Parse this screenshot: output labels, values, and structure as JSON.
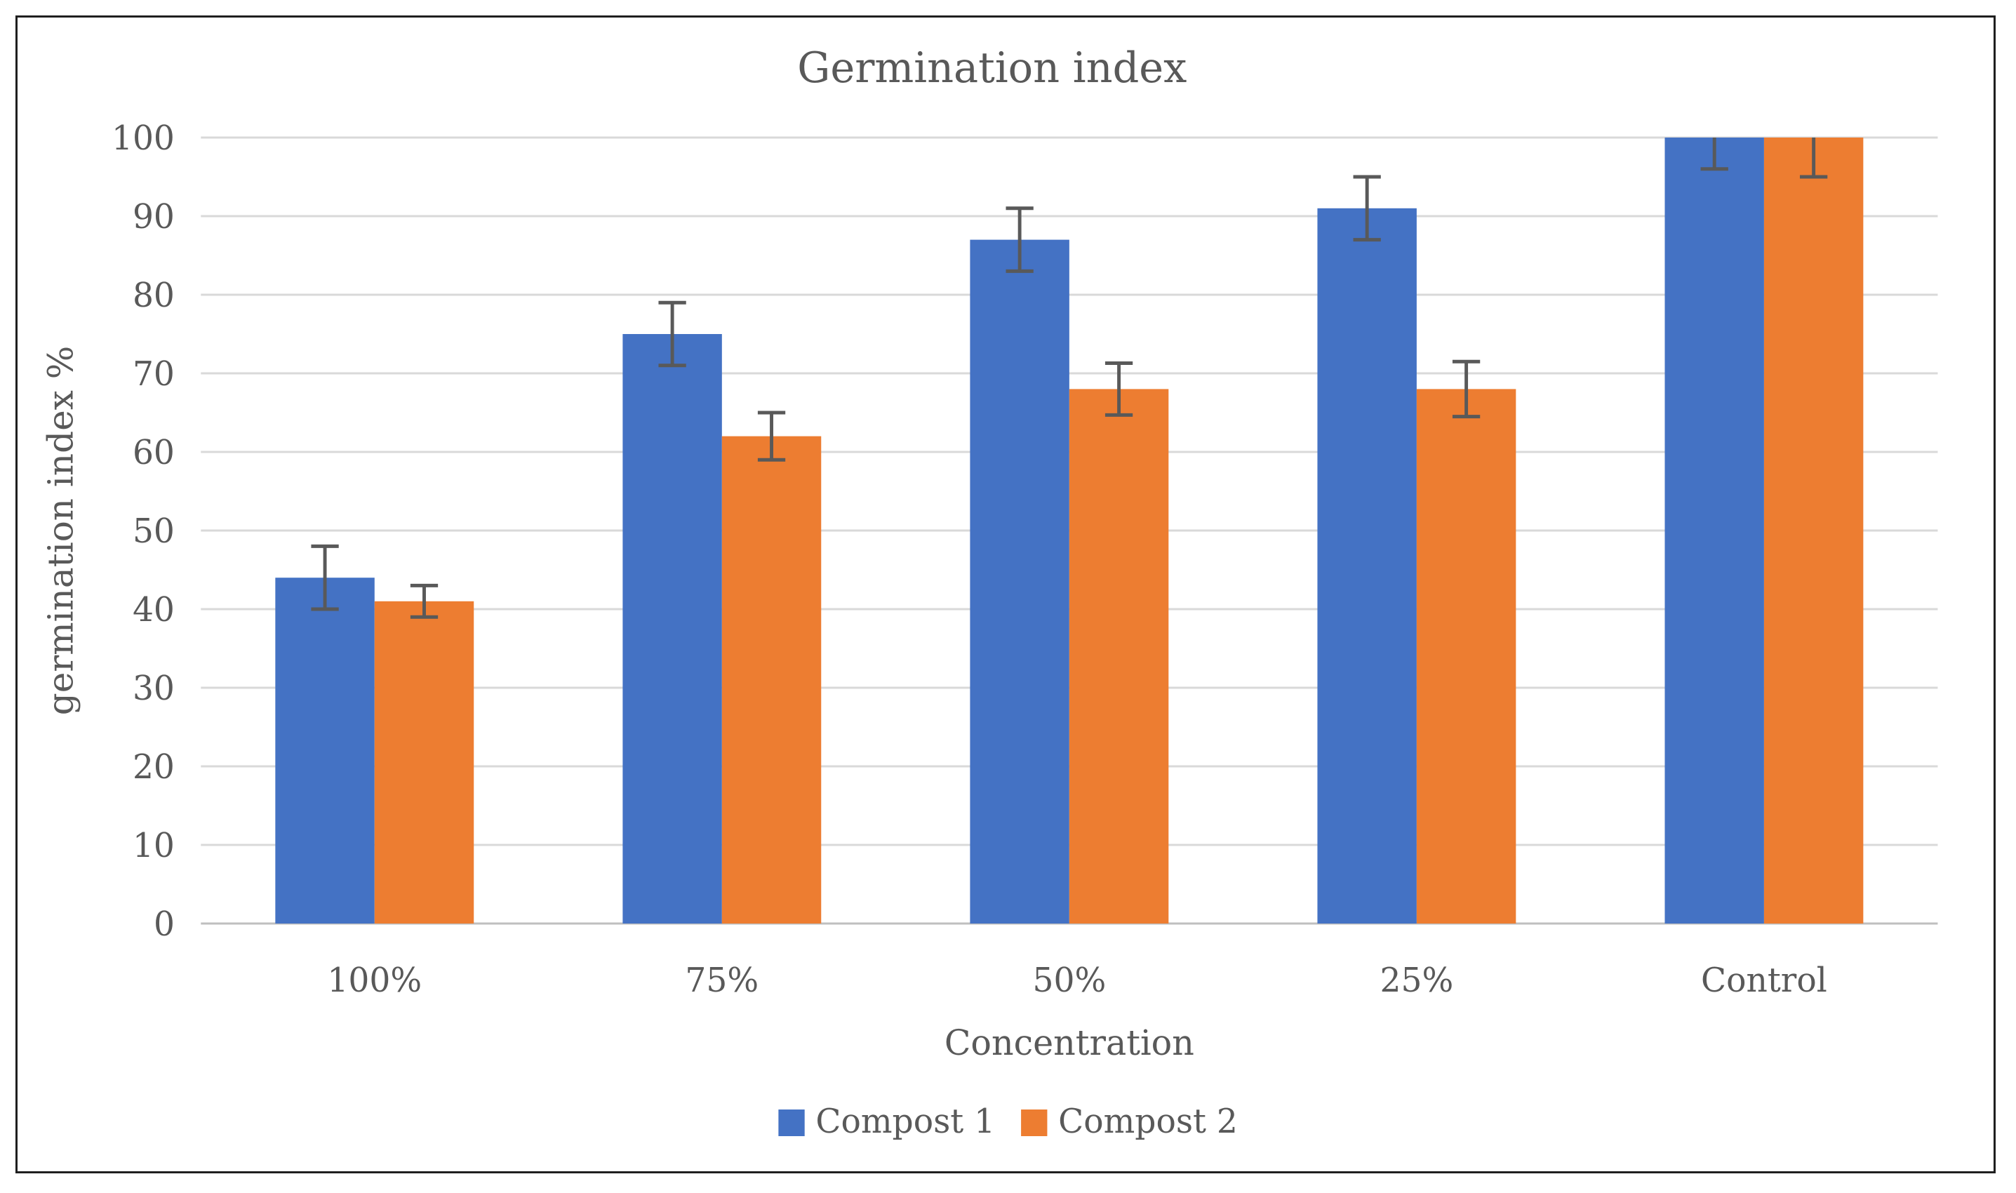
{
  "chart": {
    "background": "#ffffff",
    "frame_border_color": "#1f1f1f"
  },
  "chart_data": {
    "type": "bar",
    "title": "Germination index",
    "xlabel": "Concentration",
    "ylabel": "germination index %",
    "categories": [
      "100%",
      "75%",
      "50%",
      "25%",
      "Control"
    ],
    "series": [
      {
        "name": "Compost 1",
        "color": "#4472C4",
        "values": [
          44,
          75,
          87,
          91,
          100
        ],
        "errors": [
          4,
          4,
          4,
          4,
          4
        ]
      },
      {
        "name": "Compost 2",
        "color": "#ED7D31",
        "values": [
          41,
          62,
          68,
          68,
          100
        ],
        "errors": [
          2,
          3,
          3.3,
          3.5,
          5
        ]
      }
    ],
    "ylim": [
      0,
      100
    ],
    "ytick_step": 10,
    "yticks": [
      "0",
      "10",
      "20",
      "30",
      "40",
      "50",
      "60",
      "70",
      "80",
      "90",
      "100"
    ],
    "grid": "horizontal-only",
    "legend_position": "bottom-center",
    "error_bars": "plus-minus, clipped at axis max",
    "text_color": "#595959",
    "gridline_color": "#D9D9D9",
    "axis_line_color": "#BFBFBF",
    "error_bar_color": "#595959"
  }
}
